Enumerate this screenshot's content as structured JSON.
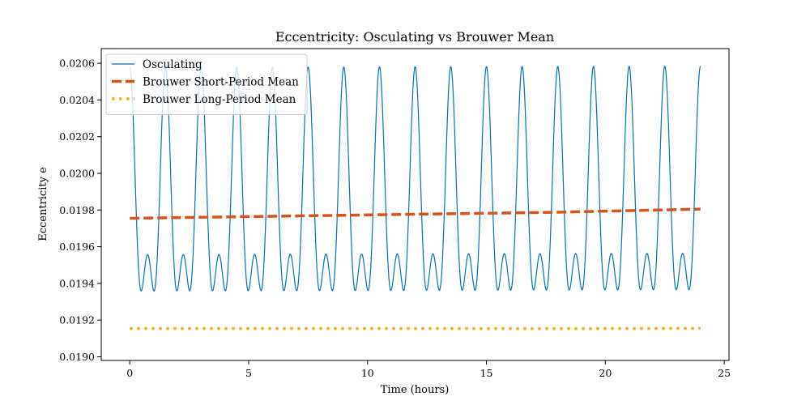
{
  "chart_data": {
    "type": "line",
    "title": "Eccentricity: Osculating vs Brouwer Mean",
    "xlabel": "Time (hours)",
    "ylabel": "Eccentricity e",
    "xlim": [
      -1.2,
      25.2
    ],
    "ylim": [
      0.01898,
      0.02068
    ],
    "x_ticks": [
      0,
      5,
      10,
      15,
      20,
      25
    ],
    "x_tick_labels": [
      "0",
      "5",
      "10",
      "15",
      "20",
      "25"
    ],
    "y_ticks": [
      0.019,
      0.0192,
      0.0194,
      0.0196,
      0.0198,
      0.02,
      0.0202,
      0.0204,
      0.0206
    ],
    "y_tick_labels": [
      "0.0190",
      "0.0192",
      "0.0194",
      "0.0196",
      "0.0198",
      "0.0200",
      "0.0202",
      "0.0204",
      "0.0206"
    ],
    "grid": false,
    "legend_position": "top-left",
    "series": [
      {
        "name": "Osculating",
        "color": "#0072b2",
        "style": "solid",
        "x_start": 0,
        "x_end": 24,
        "sample_step_hours": 0.01,
        "model": {
          "offset": 0.019767,
          "trend_per_hour": 3e-07,
          "components": [
            {
              "amplitude": 0.00051,
              "period_hours": 1.5,
              "phase_rad": 1.57
            },
            {
              "amplitude": 0.0003,
              "period_hours": 0.75,
              "phase_rad": 1.57
            }
          ]
        }
      },
      {
        "name": "Brouwer Short-Period Mean",
        "color": "#d95319",
        "style": "dashed",
        "x": [
          0,
          6,
          12,
          18,
          24
        ],
        "values": [
          0.019755,
          0.019766,
          0.019777,
          0.019788,
          0.019805
        ]
      },
      {
        "name": "Brouwer Long-Period Mean",
        "color": "#edb120",
        "style": "dotted",
        "x": [
          0,
          6,
          12,
          18,
          24
        ],
        "values": [
          0.019154,
          0.019154,
          0.019154,
          0.019153,
          0.019155
        ]
      }
    ]
  }
}
